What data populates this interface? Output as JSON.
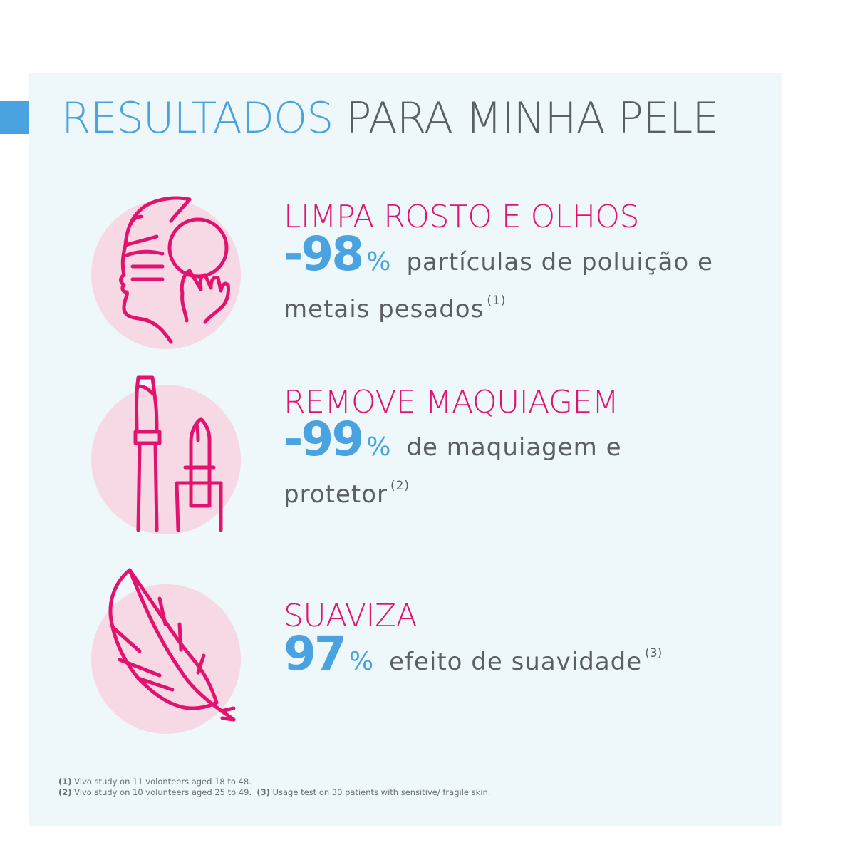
{
  "title": {
    "highlight": "RESULTADOS",
    "rest": "PARA MINHA PELE"
  },
  "features": [
    {
      "icon": "face-cleansing-icon",
      "heading": "LIMPA ROSTO E OLHOS",
      "number": "-98",
      "percent": "%",
      "desc_line1": "partículas de poluição e",
      "desc_line2": "metais pesados",
      "ref": "(1)"
    },
    {
      "icon": "mascara-lipstick-icon",
      "heading": "REMOVE MAQUIAGEM",
      "number": "-99",
      "percent": "%",
      "desc_line1": "de maquiagem e",
      "desc_line2": "protetor",
      "ref": "(2)"
    },
    {
      "icon": "feather-icon",
      "heading": "SUAVIZA",
      "number": "97",
      "percent": "%",
      "desc_line1": "efeito de suavidade",
      "ref": "(3)"
    }
  ],
  "footnotes": {
    "n1_mark": "(1)",
    "n1_text": "Vivo study on 11 volonteers aged 18 to 48.",
    "n2_mark": "(2)",
    "n2_text": "Vivo study on 10 volunteers aged 25 to 49.",
    "n3_mark": "(3)",
    "n3_text": "Usage test on 30 patients with sensitive/ fragile skin."
  },
  "colors": {
    "blue": "#4aa3e0",
    "pink": "#e2136e",
    "circle": "#f7d8e5",
    "panel": "#eef8fa",
    "gray": "#5b5e63"
  }
}
